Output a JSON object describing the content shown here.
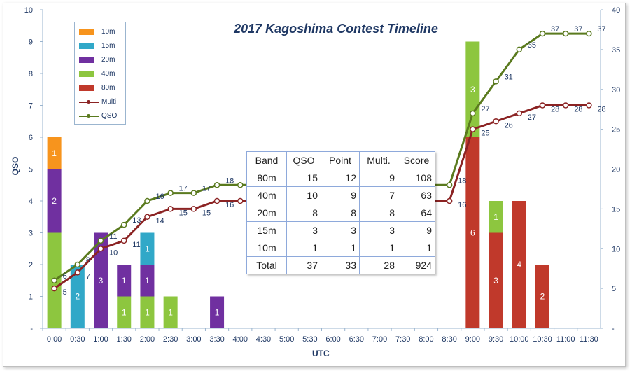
{
  "chart_data": {
    "type": "bar",
    "title": "2017 Kagoshima  Contest  Timeline",
    "xlabel": "UTC",
    "ylabel": "QSO",
    "y_left_ticks": [
      "-",
      "1",
      "2",
      "3",
      "4",
      "5",
      "6",
      "7",
      "8",
      "9",
      "10"
    ],
    "y_right_ticks": [
      "-",
      "5",
      "10",
      "15",
      "20",
      "25",
      "30",
      "35",
      "40"
    ],
    "ylim": [
      0,
      10
    ],
    "y2lim": [
      0,
      40
    ],
    "categories": [
      "0:00",
      "0:30",
      "1:00",
      "1:30",
      "2:00",
      "2:30",
      "3:00",
      "3:30",
      "4:00",
      "4:30",
      "5:00",
      "5:30",
      "6:00",
      "6:30",
      "7:00",
      "7:30",
      "8:00",
      "8:30",
      "9:00",
      "9:30",
      "10:00",
      "10:30",
      "11:00",
      "11:30"
    ],
    "stacked_series": [
      {
        "name": "80m",
        "color": "#c0392b",
        "values": [
          0,
          0,
          0,
          0,
          0,
          0,
          0,
          0,
          0,
          0,
          0,
          0,
          0,
          0,
          0,
          0,
          0,
          0,
          6,
          3,
          4,
          2,
          0,
          0
        ]
      },
      {
        "name": "40m",
        "color": "#8dc63f",
        "values": [
          3,
          0,
          0,
          1,
          1,
          1,
          0,
          0,
          0,
          0,
          0,
          0,
          0,
          0,
          0,
          0,
          0,
          0,
          3,
          1,
          0,
          0,
          0,
          0
        ]
      },
      {
        "name": "20m",
        "color": "#7030a0",
        "values": [
          2,
          0,
          3,
          1,
          1,
          0,
          0,
          1,
          0,
          0,
          0,
          0,
          0,
          0,
          0,
          0,
          0,
          0,
          0,
          0,
          0,
          0,
          0,
          0
        ]
      },
      {
        "name": "15m",
        "color": "#31a8c8",
        "values": [
          0,
          2,
          0,
          0,
          1,
          0,
          0,
          0,
          0,
          0,
          0,
          0,
          0,
          0,
          0,
          0,
          0,
          0,
          0,
          0,
          0,
          0,
          0,
          0
        ]
      },
      {
        "name": "10m",
        "color": "#f7941d",
        "values": [
          1,
          0,
          0,
          0,
          0,
          0,
          0,
          0,
          0,
          0,
          0,
          0,
          0,
          0,
          0,
          0,
          0,
          0,
          0,
          0,
          0,
          0,
          0,
          0
        ]
      }
    ],
    "line_series": [
      {
        "name": "Multi",
        "color": "#8b2323",
        "axis": "right",
        "points": [
          [
            0,
            5
          ],
          [
            1,
            7
          ],
          [
            2,
            10
          ],
          [
            3,
            11
          ],
          [
            4,
            14
          ],
          [
            5,
            15
          ],
          [
            6,
            15
          ],
          [
            7,
            16
          ],
          [
            8,
            16
          ],
          [
            17,
            16
          ],
          [
            18,
            25
          ],
          [
            19,
            26
          ],
          [
            20,
            27
          ],
          [
            21,
            28
          ],
          [
            22,
            28
          ],
          [
            23,
            28
          ]
        ],
        "labels": [
          "5",
          "7",
          "10",
          "11",
          "14",
          "15",
          "15",
          "16",
          "",
          "16",
          "25",
          "26",
          "27",
          "28",
          "28",
          "28"
        ]
      },
      {
        "name": "QSO",
        "color": "#5a7a1e",
        "axis": "right",
        "points": [
          [
            0,
            6
          ],
          [
            1,
            8
          ],
          [
            2,
            11
          ],
          [
            3,
            13
          ],
          [
            4,
            16
          ],
          [
            5,
            17
          ],
          [
            6,
            17
          ],
          [
            7,
            18
          ],
          [
            8,
            18
          ],
          [
            17,
            18
          ],
          [
            18,
            27
          ],
          [
            19,
            31
          ],
          [
            20,
            35
          ],
          [
            21,
            37
          ],
          [
            22,
            37
          ],
          [
            23,
            37
          ]
        ],
        "labels": [
          "6",
          "8",
          "11",
          "13",
          "16",
          "17",
          "17",
          "18",
          "",
          "18",
          "27",
          "31",
          "35",
          "37",
          "37",
          "37"
        ]
      }
    ],
    "legend_position": "top-left",
    "grid": false
  },
  "legend": {
    "items": [
      {
        "label": "10m",
        "color": "#f7941d",
        "kind": "bar"
      },
      {
        "label": "15m",
        "color": "#31a8c8",
        "kind": "bar"
      },
      {
        "label": "20m",
        "color": "#7030a0",
        "kind": "bar"
      },
      {
        "label": "40m",
        "color": "#8dc63f",
        "kind": "bar"
      },
      {
        "label": "80m",
        "color": "#c0392b",
        "kind": "bar"
      },
      {
        "label": "Multi",
        "color": "#8b2323",
        "kind": "line"
      },
      {
        "label": "QSO",
        "color": "#5a7a1e",
        "kind": "line"
      }
    ]
  },
  "score_table": {
    "headers": [
      "Band",
      "QSO",
      "Point",
      "Multi.",
      "Score"
    ],
    "rows": [
      [
        "80m",
        "15",
        "12",
        "9",
        "108"
      ],
      [
        "40m",
        "10",
        "9",
        "7",
        "63"
      ],
      [
        "20m",
        "8",
        "8",
        "8",
        "64"
      ],
      [
        "15m",
        "3",
        "3",
        "3",
        "9"
      ],
      [
        "10m",
        "1",
        "1",
        "1",
        "1"
      ],
      [
        "Total",
        "37",
        "33",
        "28",
        "924"
      ]
    ]
  }
}
